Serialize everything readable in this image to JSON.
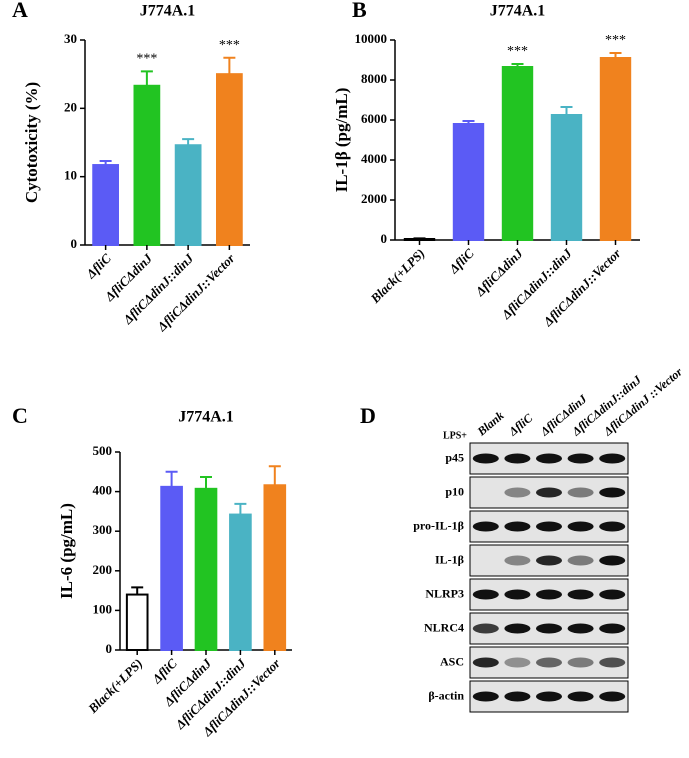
{
  "chart_data": [
    {
      "type": "bar",
      "panel_label": "A",
      "title": "J774A.1",
      "ylabel": "Cytotoxicity (%)",
      "categories": [
        "ΔfliC",
        "ΔfliCΔdinJ",
        "ΔfliCΔdinJ::dinJ",
        "ΔfliCΔdinJ::Vector"
      ],
      "values": [
        11.7,
        23.3,
        14.6,
        25.0
      ],
      "errors": [
        0.6,
        2.1,
        0.9,
        2.4
      ],
      "colors": [
        "#5b5bf5",
        "#22c422",
        "#4ab3c4",
        "#f0821e"
      ],
      "annotations": [
        null,
        "***",
        null,
        "***"
      ],
      "ylim": [
        0,
        30
      ],
      "yticks": [
        0,
        10,
        20,
        30
      ]
    },
    {
      "type": "bar",
      "panel_label": "B",
      "title": "J774A.1",
      "ylabel": "IL-1β (pg/mL)",
      "categories": [
        "Black(+LPS)",
        "ΔfliC",
        "ΔfliCΔdinJ",
        "ΔfliCΔdinJ::dinJ",
        "ΔfliCΔdinJ::Vector"
      ],
      "values": [
        50,
        5800,
        8650,
        6250,
        9100
      ],
      "errors": [
        30,
        150,
        150,
        400,
        250
      ],
      "colors": [
        "#ffffff",
        "#5b5bf5",
        "#22c422",
        "#4ab3c4",
        "#f0821e"
      ],
      "annotations": [
        null,
        null,
        "***",
        null,
        "***"
      ],
      "ylim": [
        0,
        10000
      ],
      "yticks": [
        0,
        2000,
        4000,
        6000,
        8000,
        10000
      ]
    },
    {
      "type": "bar",
      "panel_label": "C",
      "title": "J774A.1",
      "ylabel": "IL-6 (pg/mL)",
      "categories": [
        "Black(+LPS)",
        "ΔfliC",
        "ΔfliCΔdinJ",
        "ΔfliCΔdinJ::dinJ",
        "ΔfliCΔdinJ::Vector"
      ],
      "values": [
        140,
        412,
        407,
        342,
        416
      ],
      "errors": [
        18,
        38,
        30,
        27,
        48
      ],
      "colors": [
        "#ffffff",
        "#5b5bf5",
        "#22c422",
        "#4ab3c4",
        "#f0821e"
      ],
      "ylim": [
        0,
        500
      ],
      "yticks": [
        0,
        100,
        200,
        300,
        400,
        500
      ]
    }
  ],
  "blot": {
    "panel_label": "D",
    "treatment": "LPS+",
    "lanes": [
      "Blank",
      "ΔfliC",
      "ΔfliCΔdinJ",
      "ΔfliCΔdinJ::dinJ",
      "ΔfliCΔdinJ ::Vector"
    ],
    "rows": [
      "p45",
      "p10",
      "pro-IL-1β",
      "IL-1β",
      "NLRP3",
      "NLRC4",
      "ASC",
      "β-actin"
    ]
  }
}
